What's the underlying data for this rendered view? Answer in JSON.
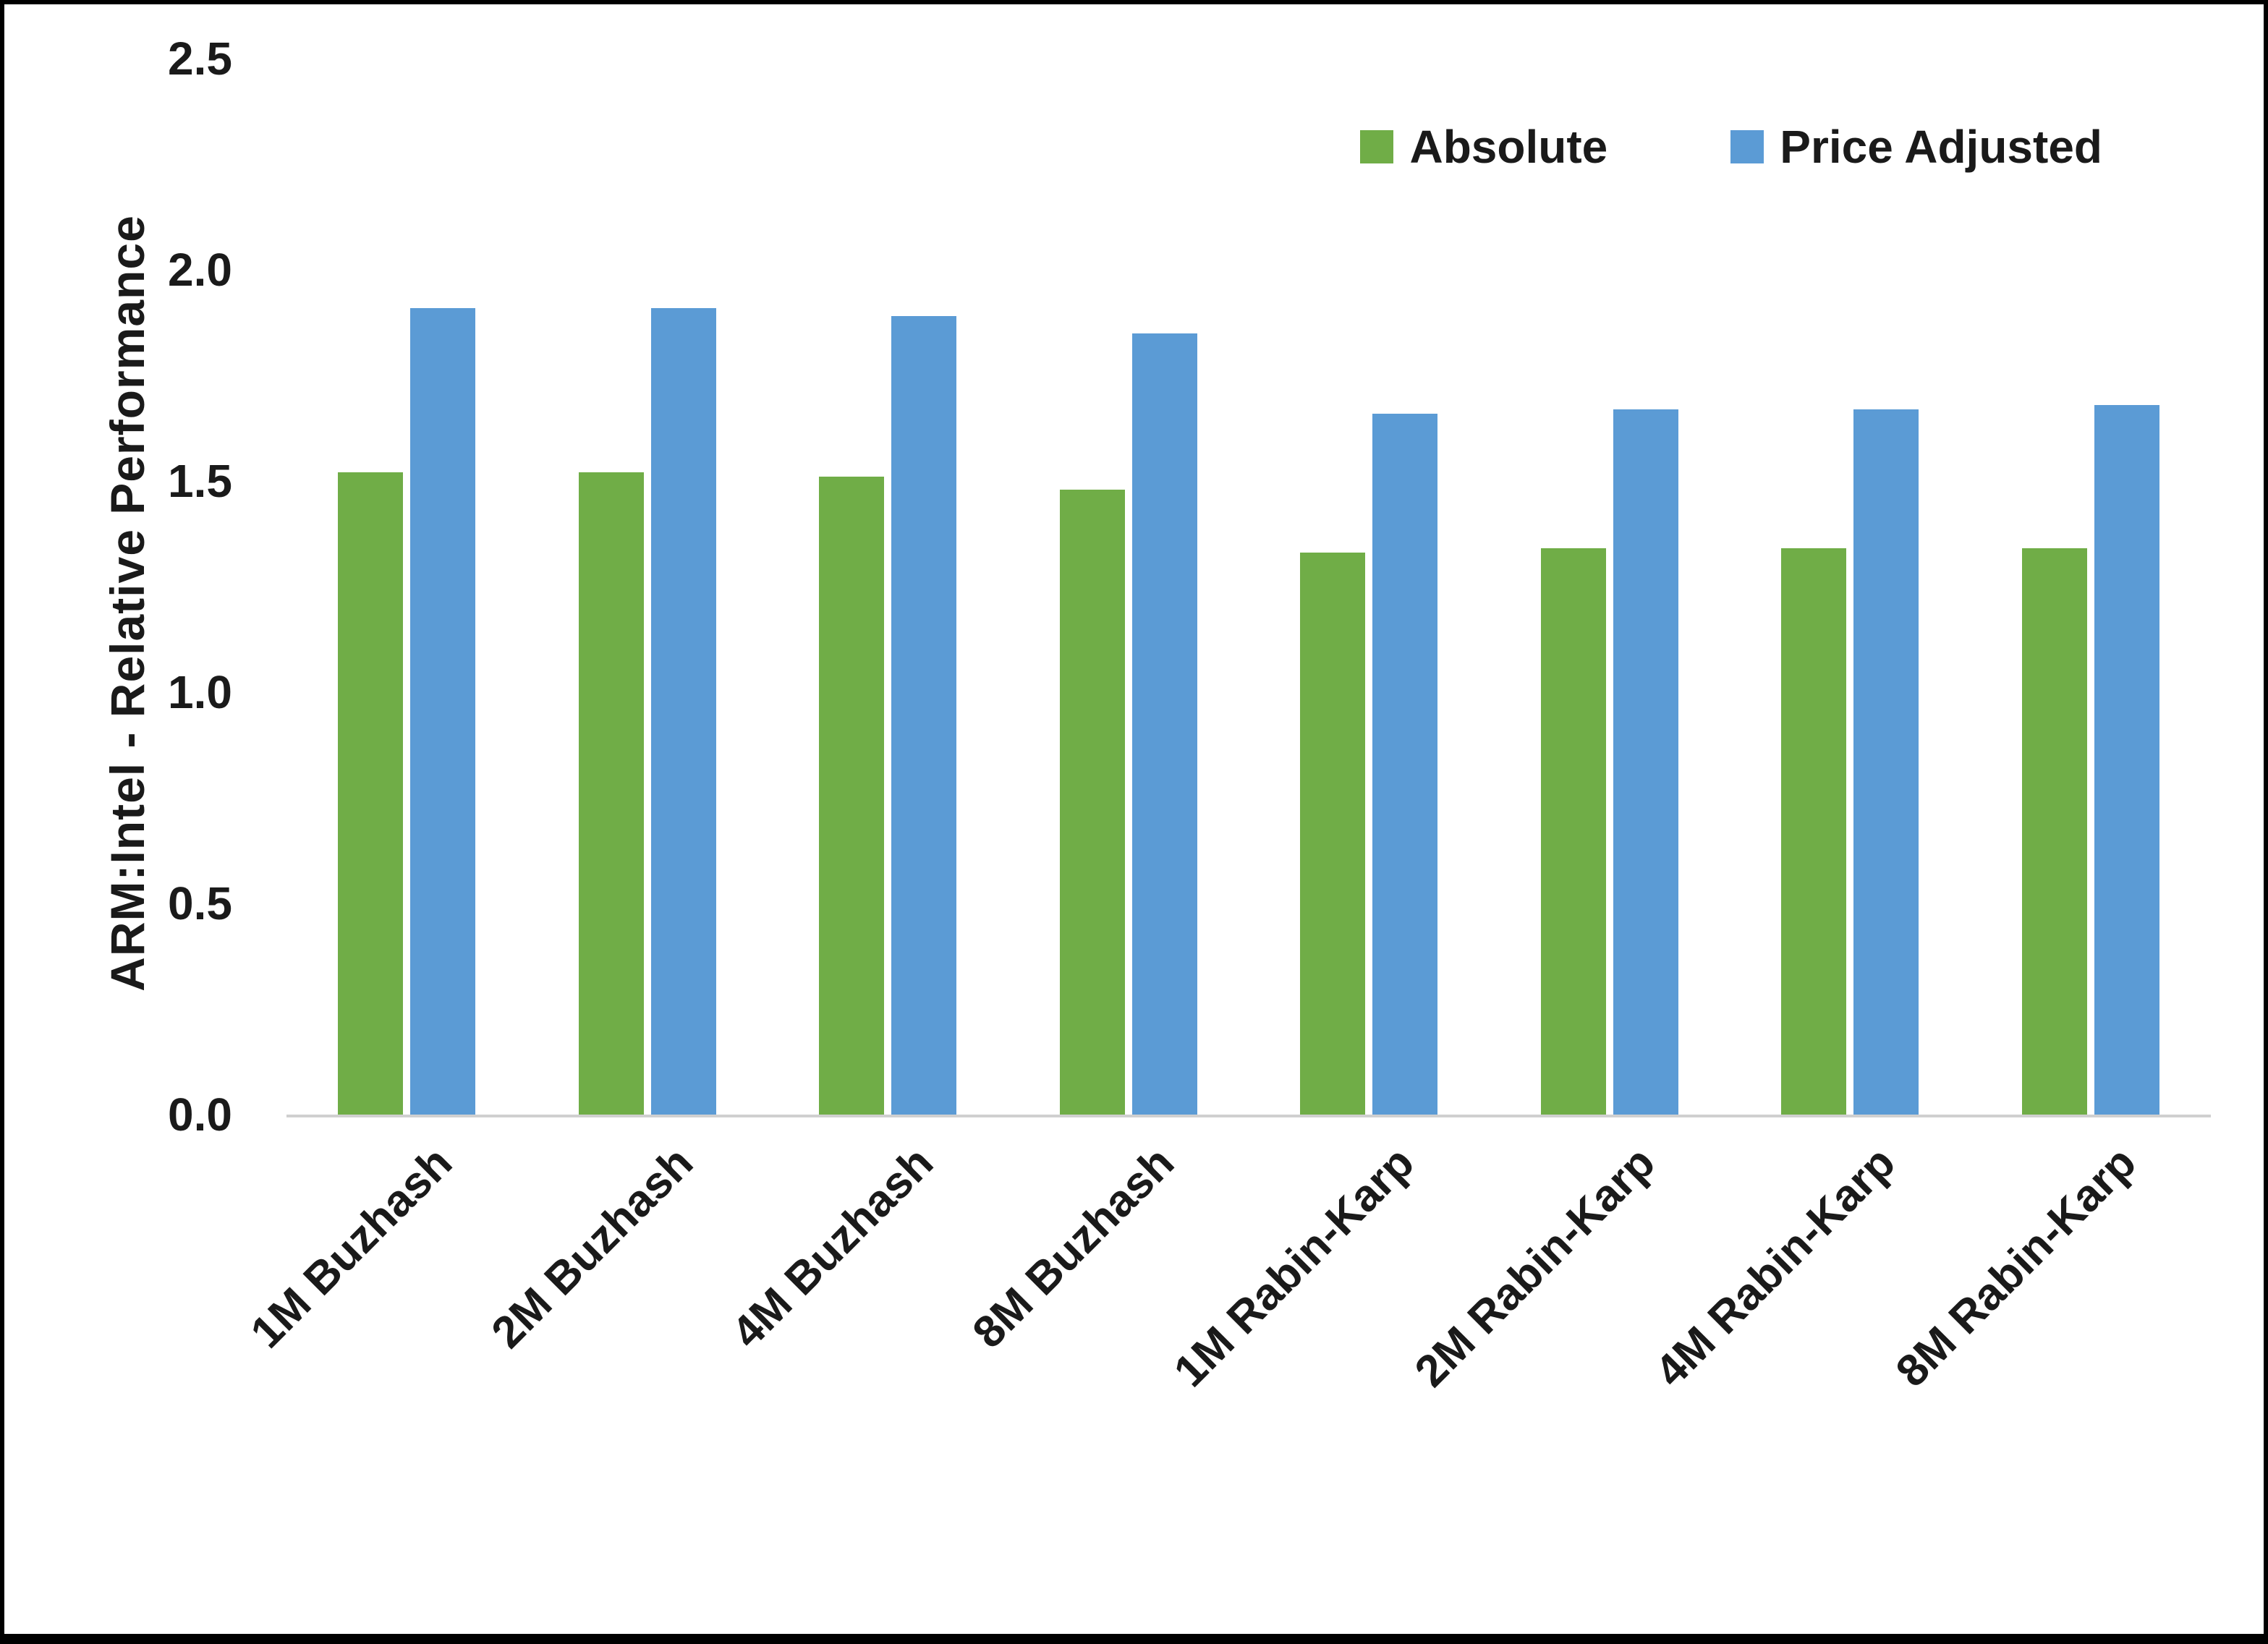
{
  "chart_data": {
    "type": "bar",
    "title": "",
    "xlabel": "",
    "ylabel": "ARM:Intel - Relative Performance",
    "ylim": [
      0,
      2.5
    ],
    "ytick_step": 0.5,
    "grid": false,
    "legend_position": "top-right",
    "categories": [
      "1M Buzhash",
      "2M Buzhash",
      "4M Buzhash",
      "8M Buzhash",
      "1M Rabin-Karp",
      "2M Rabin-Karp",
      "4M Rabin-Karp",
      "8M Rabin-Karp"
    ],
    "series": [
      {
        "name": "Absolute",
        "color": "#70AD47",
        "values": [
          1.52,
          1.52,
          1.51,
          1.48,
          1.33,
          1.34,
          1.34,
          1.34
        ]
      },
      {
        "name": "Price Adjusted",
        "color": "#5B9BD5",
        "values": [
          1.91,
          1.91,
          1.89,
          1.85,
          1.66,
          1.67,
          1.67,
          1.68
        ]
      }
    ]
  }
}
